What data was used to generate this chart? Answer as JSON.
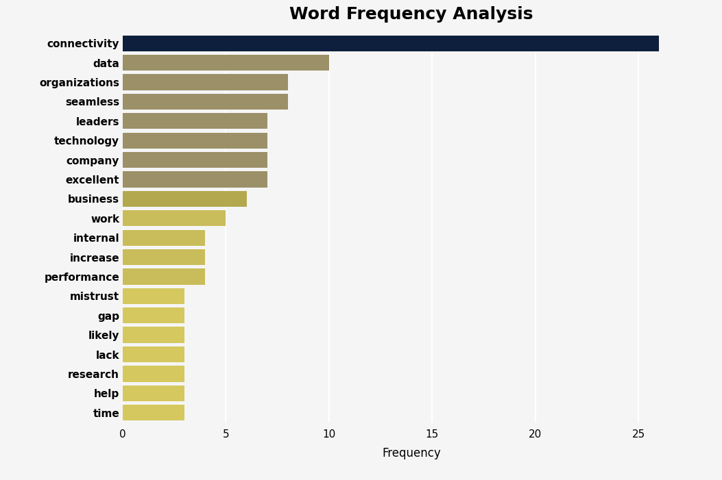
{
  "title": "Word Frequency Analysis",
  "xlabel": "Frequency",
  "categories": [
    "connectivity",
    "data",
    "organizations",
    "seamless",
    "leaders",
    "technology",
    "company",
    "excellent",
    "business",
    "work",
    "internal",
    "increase",
    "performance",
    "mistrust",
    "gap",
    "likely",
    "lack",
    "research",
    "help",
    "time"
  ],
  "values": [
    26,
    10,
    8,
    8,
    7,
    7,
    7,
    7,
    6,
    5,
    4,
    4,
    4,
    3,
    3,
    3,
    3,
    3,
    3,
    3
  ],
  "bar_colors": [
    "#0d1f3c",
    "#9b9067",
    "#9b9067",
    "#9b9067",
    "#9b9067",
    "#9b9067",
    "#9b9067",
    "#9b9067",
    "#b3a84e",
    "#c9bc5a",
    "#c9bc5a",
    "#c9bc5a",
    "#c9bc5a",
    "#d4c85f",
    "#d4c85f",
    "#d4c85f",
    "#d4c85f",
    "#d4c85f",
    "#d4c85f",
    "#d4c85f"
  ],
  "background_color": "#f5f5f5",
  "title_fontsize": 18,
  "xlim": [
    0,
    28
  ],
  "xticks": [
    0,
    5,
    10,
    15,
    20,
    25
  ],
  "bar_height": 0.82,
  "label_fontsize": 11,
  "tick_fontsize": 11
}
